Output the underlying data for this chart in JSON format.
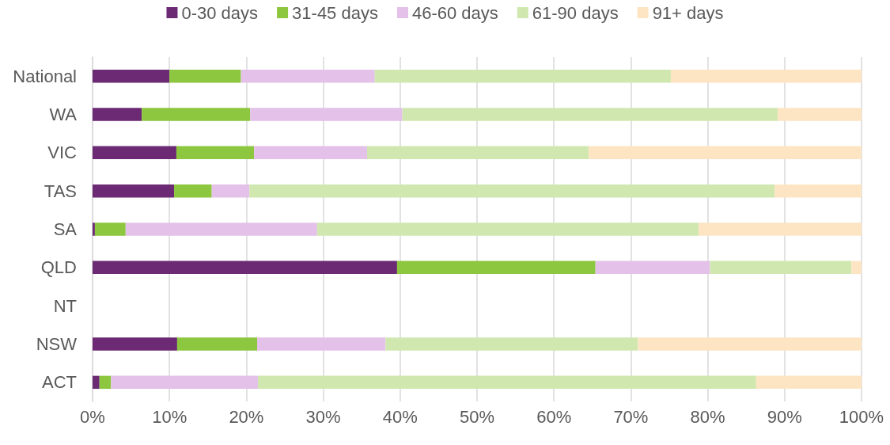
{
  "chart_data": {
    "type": "bar",
    "orientation": "horizontal",
    "stacked": true,
    "categories": [
      "National",
      "WA",
      "VIC",
      "TAS",
      "SA",
      "QLD",
      "NT",
      "NSW",
      "ACT"
    ],
    "series": [
      {
        "name": "0-30 days",
        "color": "#6b2a73",
        "values": [
          10.0,
          6.4,
          10.9,
          10.6,
          0.3,
          39.6,
          null,
          11.0,
          0.9
        ]
      },
      {
        "name": "31-45 days",
        "color": "#8dc63f",
        "values": [
          9.3,
          14.1,
          10.1,
          4.9,
          4.0,
          25.8,
          null,
          10.4,
          1.5
        ]
      },
      {
        "name": "46-60 days",
        "color": "#e3c1e8",
        "values": [
          17.4,
          19.8,
          14.7,
          4.9,
          24.9,
          14.9,
          null,
          16.7,
          19.1
        ]
      },
      {
        "name": "61-90 days",
        "color": "#d0e8b0",
        "values": [
          38.5,
          48.8,
          28.8,
          68.3,
          49.6,
          18.4,
          null,
          32.8,
          64.8
        ]
      },
      {
        "name": "91+ days",
        "color": "#fde5c4",
        "values": [
          24.8,
          10.9,
          35.5,
          11.3,
          21.2,
          1.3,
          null,
          29.1,
          13.7
        ]
      }
    ],
    "xlim": [
      0,
      100
    ],
    "xticks": [
      {
        "value": 0,
        "label": "0%"
      },
      {
        "value": 10,
        "label": "10%"
      },
      {
        "value": 20,
        "label": "20%"
      },
      {
        "value": 30,
        "label": "30%"
      },
      {
        "value": 40,
        "label": "40%"
      },
      {
        "value": 50,
        "label": "50%"
      },
      {
        "value": 60,
        "label": "60%"
      },
      {
        "value": 70,
        "label": "70%"
      },
      {
        "value": 80,
        "label": "80%"
      },
      {
        "value": 90,
        "label": "90%"
      },
      {
        "value": 100,
        "label": "100%"
      }
    ],
    "grid": "x",
    "legend": "top"
  }
}
